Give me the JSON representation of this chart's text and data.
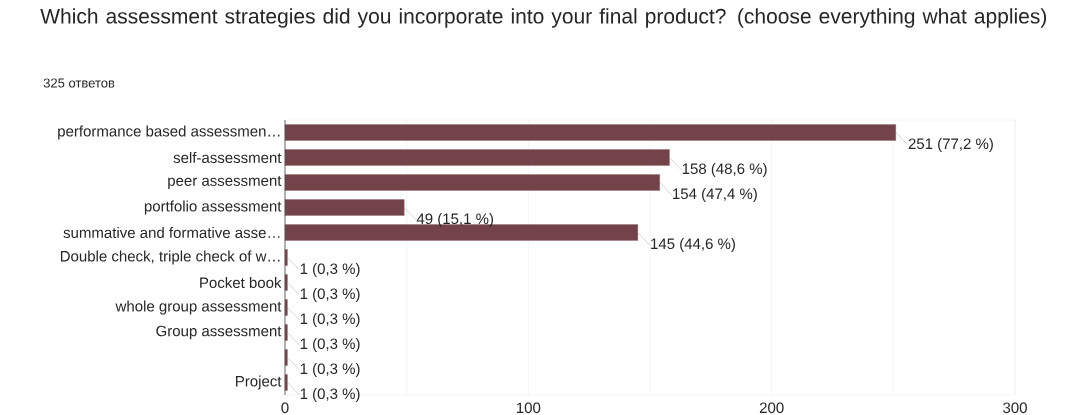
{
  "chart_data": {
    "type": "bar",
    "orientation": "horizontal",
    "title": "Which assessment strategies did you incorporate into your final product? (choose everything what applies)",
    "subtitle": "325 ответов",
    "categories": [
      "performance based assessmen…",
      "self-assessment",
      "peer assessment",
      "portfolio assessment",
      "summative and formative asse…",
      "Double check, triple check of w…",
      "Pocket book",
      "whole group assessment",
      "Group assessment",
      null,
      "Project"
    ],
    "values": [
      251,
      158,
      154,
      49,
      145,
      1,
      1,
      1,
      1,
      1,
      1
    ],
    "value_labels": [
      "251 (77,2 %)",
      "158 (48,6 %)",
      "154 (47,4 %)",
      "49 (15,1 %)",
      "145 (44,6 %)",
      "1 (0,3 %)",
      "1 (0,3 %)",
      "1 (0,3 %)",
      "1 (0,3 %)",
      "1 (0,3 %)",
      "1 (0,3 %)"
    ],
    "color": "#74434a",
    "xlim": [
      0,
      300
    ],
    "xticks": [
      0,
      {
        "value": 50,
        "label": null
      },
      100,
      {
        "value": 150,
        "label": null
      },
      200,
      {
        "value": 250,
        "label": null
      },
      300
    ],
    "grid": "x"
  }
}
